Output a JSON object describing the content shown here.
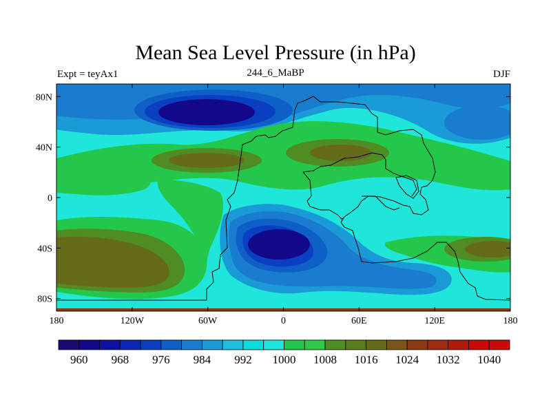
{
  "chart_data": {
    "type": "heatmap",
    "title": "Mean Sea Level Pressure (in hPa)",
    "left_label": "Expt = teyAx1",
    "center_label": "244_6_MaBP",
    "right_label": "DJF",
    "x_ticks": [
      "180",
      "120W",
      "60W",
      "0",
      "60E",
      "120E",
      "180"
    ],
    "x_tick_values": [
      -180,
      -120,
      -60,
      0,
      60,
      120,
      180
    ],
    "y_ticks": [
      "80N",
      "40N",
      "0",
      "40S",
      "80S"
    ],
    "y_tick_values": [
      80,
      40,
      0,
      -40,
      -80
    ],
    "xlim": [
      -180,
      180
    ],
    "ylim": [
      -90,
      90
    ],
    "colorbar": {
      "levels": [
        960,
        964,
        968,
        972,
        976,
        980,
        984,
        988,
        992,
        996,
        1000,
        1004,
        1008,
        1012,
        1016,
        1020,
        1024,
        1028,
        1032,
        1036,
        1040
      ],
      "labels": [
        "960",
        "968",
        "976",
        "984",
        "992",
        "1000",
        "1008",
        "1016",
        "1024",
        "1032",
        "1040"
      ],
      "label_values": [
        960,
        968,
        976,
        984,
        992,
        1000,
        1008,
        1016,
        1024,
        1032,
        1040
      ],
      "colors": [
        "#1a0a75",
        "#120a8a",
        "#0d13a0",
        "#0d26b5",
        "#0a3fc2",
        "#0f5fc8",
        "#1a7ccf",
        "#1a9ad6",
        "#1fbde0",
        "#0ddcdc",
        "#1fe6d8",
        "#23c84a",
        "#2ec946",
        "#4f8c23",
        "#5a7d1e",
        "#666b19",
        "#7a5514",
        "#8c3a12",
        "#a02a14",
        "#b3180f",
        "#c80a0a",
        "#c80a0a"
      ]
    },
    "fields": {
      "background_hpa": 1000,
      "land_outline": "coastline"
    }
  }
}
